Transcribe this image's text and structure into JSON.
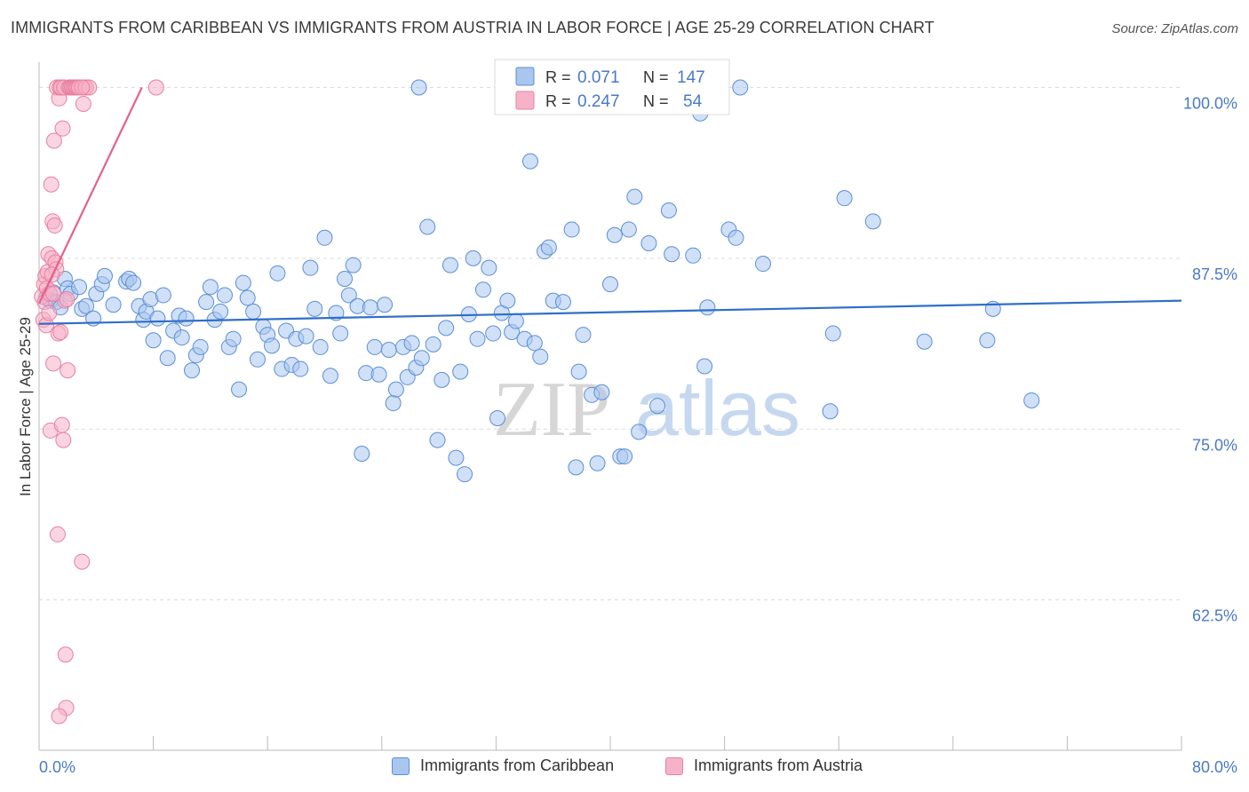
{
  "title": "IMMIGRANTS FROM CARIBBEAN VS IMMIGRANTS FROM AUSTRIA IN LABOR FORCE | AGE 25-29 CORRELATION CHART",
  "source": "Source: ZipAtlas.com",
  "watermark": {
    "zip": "ZIP",
    "atlas": "atlas"
  },
  "colors": {
    "blue_fill": "#a9c6ee",
    "blue_stroke": "#5b8fd6",
    "blue_line": "#2f6fc8",
    "pink_fill": "#f6b3c8",
    "pink_stroke": "#e87fa1",
    "pink_line": "#e4608c",
    "tick_text": "#4a78c8",
    "grid": "#dcdcdc"
  },
  "legend_box": {
    "rows": [
      {
        "r_label": "R =",
        "r_value": "0.071",
        "n_label": "N =",
        "n_value": "147"
      },
      {
        "r_label": "R =",
        "r_value": "0.247",
        "n_label": "N =",
        "n_value": "54"
      }
    ]
  },
  "bottom_legend": [
    "Immigrants from Caribbean",
    "Immigrants from Austria"
  ],
  "chart_data": {
    "type": "scatter",
    "title": "IMMIGRANTS FROM CARIBBEAN VS IMMIGRANTS FROM AUSTRIA IN LABOR FORCE | AGE 25-29 CORRELATION CHART",
    "xlabel": "",
    "ylabel": "In Labor Force | Age 25-29",
    "xlim": [
      0,
      80
    ],
    "ylim": [
      51.5,
      102.5
    ],
    "x_tick_labels": [
      "0.0%",
      "80.0%"
    ],
    "y_tick_labels": [
      "100.0%",
      "87.5%",
      "75.0%",
      "62.5%"
    ],
    "y_ticks": [
      100,
      87.5,
      75,
      62.5
    ],
    "grid": true,
    "series": [
      {
        "name": "Immigrants from Caribbean",
        "R": 0.071,
        "N": 147,
        "trend": {
          "x": [
            0,
            80
          ],
          "y": [
            82.7,
            84.4
          ]
        },
        "points": [
          [
            0.5,
            84.6
          ],
          [
            0.8,
            84.4
          ],
          [
            1.0,
            85.0
          ],
          [
            1.2,
            84.3
          ],
          [
            1.5,
            83.9
          ],
          [
            1.8,
            86.0
          ],
          [
            2.0,
            85.3
          ],
          [
            2.2,
            84.9
          ],
          [
            2.8,
            85.4
          ],
          [
            3.0,
            83.8
          ],
          [
            3.3,
            84.0
          ],
          [
            3.8,
            83.1
          ],
          [
            4.0,
            84.9
          ],
          [
            4.4,
            85.6
          ],
          [
            4.6,
            86.2
          ],
          [
            5.2,
            84.1
          ],
          [
            6.1,
            85.8
          ],
          [
            6.3,
            86.0
          ],
          [
            6.6,
            85.7
          ],
          [
            7.0,
            84.0
          ],
          [
            7.3,
            83.0
          ],
          [
            7.5,
            83.6
          ],
          [
            7.8,
            84.5
          ],
          [
            8.0,
            81.5
          ],
          [
            8.3,
            83.1
          ],
          [
            8.7,
            84.8
          ],
          [
            9.0,
            80.2
          ],
          [
            9.4,
            82.2
          ],
          [
            9.8,
            83.3
          ],
          [
            10.0,
            81.7
          ],
          [
            10.3,
            83.1
          ],
          [
            10.7,
            79.3
          ],
          [
            11.0,
            80.4
          ],
          [
            11.3,
            81.0
          ],
          [
            11.7,
            84.3
          ],
          [
            12.0,
            85.4
          ],
          [
            12.3,
            83.0
          ],
          [
            12.7,
            83.6
          ],
          [
            13.0,
            84.8
          ],
          [
            13.3,
            81.0
          ],
          [
            13.6,
            81.6
          ],
          [
            14.0,
            77.9
          ],
          [
            14.3,
            85.7
          ],
          [
            14.6,
            84.6
          ],
          [
            15.0,
            83.6
          ],
          [
            15.3,
            80.1
          ],
          [
            15.7,
            82.5
          ],
          [
            16.0,
            81.9
          ],
          [
            16.3,
            81.1
          ],
          [
            16.7,
            86.4
          ],
          [
            17.0,
            79.4
          ],
          [
            17.3,
            82.2
          ],
          [
            17.7,
            79.7
          ],
          [
            18.0,
            81.6
          ],
          [
            18.3,
            79.4
          ],
          [
            18.7,
            81.8
          ],
          [
            19.0,
            86.8
          ],
          [
            19.3,
            83.8
          ],
          [
            19.7,
            81.0
          ],
          [
            20.0,
            89.0
          ],
          [
            20.4,
            78.9
          ],
          [
            20.8,
            83.5
          ],
          [
            21.1,
            82.0
          ],
          [
            21.4,
            86.0
          ],
          [
            21.7,
            84.8
          ],
          [
            22.0,
            87.0
          ],
          [
            22.3,
            84.0
          ],
          [
            22.6,
            73.2
          ],
          [
            22.9,
            79.1
          ],
          [
            23.2,
            83.9
          ],
          [
            23.5,
            81.0
          ],
          [
            23.8,
            79.0
          ],
          [
            24.2,
            84.1
          ],
          [
            24.5,
            80.8
          ],
          [
            24.8,
            76.9
          ],
          [
            25.0,
            77.9
          ],
          [
            25.5,
            81.0
          ],
          [
            25.8,
            78.8
          ],
          [
            26.1,
            81.3
          ],
          [
            26.4,
            79.5
          ],
          [
            26.6,
            100.0
          ],
          [
            26.8,
            80.2
          ],
          [
            27.2,
            89.8
          ],
          [
            27.6,
            81.2
          ],
          [
            27.9,
            74.2
          ],
          [
            28.2,
            78.6
          ],
          [
            28.5,
            82.4
          ],
          [
            28.8,
            87.0
          ],
          [
            29.2,
            72.9
          ],
          [
            29.5,
            79.2
          ],
          [
            29.8,
            71.7
          ],
          [
            30.1,
            83.4
          ],
          [
            30.4,
            87.5
          ],
          [
            30.7,
            81.6
          ],
          [
            31.1,
            85.2
          ],
          [
            31.5,
            86.8
          ],
          [
            31.8,
            82.0
          ],
          [
            32.1,
            75.8
          ],
          [
            32.4,
            83.5
          ],
          [
            32.8,
            84.4
          ],
          [
            33.1,
            82.1
          ],
          [
            33.4,
            82.9
          ],
          [
            34.0,
            81.6
          ],
          [
            34.4,
            94.6
          ],
          [
            34.7,
            81.3
          ],
          [
            35.1,
            80.3
          ],
          [
            35.4,
            88.0
          ],
          [
            35.7,
            88.3
          ],
          [
            36.0,
            84.4
          ],
          [
            36.7,
            84.3
          ],
          [
            37.3,
            89.6
          ],
          [
            37.6,
            72.2
          ],
          [
            37.8,
            79.2
          ],
          [
            38.1,
            81.9
          ],
          [
            38.7,
            77.5
          ],
          [
            39.1,
            72.5
          ],
          [
            39.4,
            77.7
          ],
          [
            40.0,
            85.6
          ],
          [
            40.3,
            89.2
          ],
          [
            40.7,
            73.0
          ],
          [
            41.0,
            73.0
          ],
          [
            41.3,
            89.6
          ],
          [
            41.7,
            92.0
          ],
          [
            42.0,
            74.8
          ],
          [
            42.7,
            88.6
          ],
          [
            43.3,
            76.7
          ],
          [
            44.1,
            91.0
          ],
          [
            44.3,
            87.8
          ],
          [
            45.8,
            87.7
          ],
          [
            46.3,
            98.1
          ],
          [
            46.6,
            79.6
          ],
          [
            46.8,
            83.9
          ],
          [
            48.3,
            89.6
          ],
          [
            48.8,
            89.0
          ],
          [
            49.1,
            100.0
          ],
          [
            50.7,
            87.1
          ],
          [
            55.4,
            76.3
          ],
          [
            55.6,
            82.0
          ],
          [
            56.4,
            91.9
          ],
          [
            58.4,
            90.2
          ],
          [
            62.0,
            81.4
          ],
          [
            66.8,
            83.8
          ],
          [
            66.4,
            81.5
          ],
          [
            69.5,
            77.1
          ]
        ]
      },
      {
        "name": "Immigrants from Austria",
        "R": 0.247,
        "N": 54,
        "trend": {
          "x": [
            0,
            7.2
          ],
          "y": [
            84.2,
            100.0
          ]
        },
        "points": [
          [
            0.2,
            84.7
          ],
          [
            0.3,
            83.0
          ],
          [
            0.35,
            85.6
          ],
          [
            0.4,
            84.3
          ],
          [
            0.45,
            86.2
          ],
          [
            0.5,
            82.6
          ],
          [
            0.55,
            85.3
          ],
          [
            0.6,
            86.5
          ],
          [
            0.65,
            87.8
          ],
          [
            0.7,
            83.5
          ],
          [
            0.75,
            84.9
          ],
          [
            0.8,
            74.9
          ],
          [
            0.85,
            92.9
          ],
          [
            0.9,
            87.5
          ],
          [
            0.95,
            90.2
          ],
          [
            1.0,
            79.8
          ],
          [
            1.05,
            96.1
          ],
          [
            1.1,
            89.9
          ],
          [
            1.15,
            87.2
          ],
          [
            1.2,
            86.7
          ],
          [
            1.25,
            100.0
          ],
          [
            1.3,
            67.3
          ],
          [
            1.35,
            82.0
          ],
          [
            1.4,
            99.2
          ],
          [
            1.45,
            100.0
          ],
          [
            1.5,
            82.1
          ],
          [
            1.55,
            100.0
          ],
          [
            1.6,
            75.3
          ],
          [
            1.65,
            97.0
          ],
          [
            1.7,
            74.2
          ],
          [
            1.75,
            100.0
          ],
          [
            1.8,
            84.4
          ],
          [
            1.85,
            58.5
          ],
          [
            1.9,
            54.6
          ],
          [
            1.95,
            84.5
          ],
          [
            2.0,
            79.3
          ],
          [
            2.1,
            100.0
          ],
          [
            2.2,
            100.0
          ],
          [
            2.3,
            100.0
          ],
          [
            2.4,
            100.0
          ],
          [
            2.5,
            100.0
          ],
          [
            2.6,
            100.0
          ],
          [
            2.7,
            100.0
          ],
          [
            2.8,
            100.0
          ],
          [
            3.0,
            65.3
          ],
          [
            3.1,
            98.8
          ],
          [
            3.2,
            100.0
          ],
          [
            3.3,
            100.0
          ],
          [
            3.5,
            100.0
          ],
          [
            3.0,
            100.0
          ],
          [
            1.0,
            84.9
          ],
          [
            0.9,
            86.3
          ],
          [
            1.4,
            54.0
          ],
          [
            8.2,
            100.0
          ]
        ]
      }
    ]
  }
}
